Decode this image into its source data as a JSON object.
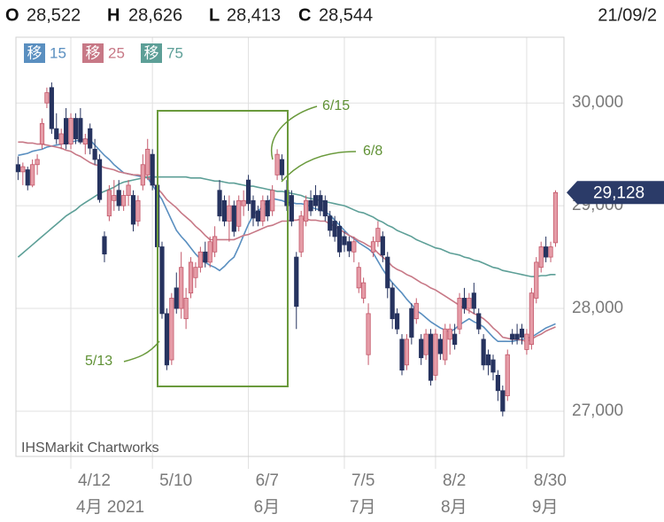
{
  "header": {
    "ohlc": [
      {
        "label": "O",
        "value": "28,522"
      },
      {
        "label": "H",
        "value": "28,626"
      },
      {
        "label": "L",
        "value": "28,413"
      },
      {
        "label": "C",
        "value": "28,544"
      }
    ],
    "date": "21/09/2"
  },
  "chart_data": {
    "type": "candlestick",
    "watermark": "IHSMarkit Chartworks",
    "categories": [
      null,
      null,
      null,
      null,
      null,
      null,
      null,
      null,
      null,
      null,
      null,
      "4/12",
      null,
      null,
      null,
      null,
      null,
      null,
      null,
      null,
      null,
      null,
      null,
      null,
      null,
      null,
      null,
      null,
      "5/10",
      null,
      null,
      null,
      null,
      null,
      null,
      null,
      null,
      null,
      null,
      null,
      null,
      null,
      null,
      null,
      null,
      null,
      null,
      null,
      "6/7",
      null,
      null,
      null,
      null,
      null,
      null,
      null,
      null,
      null,
      null,
      null,
      null,
      null,
      null,
      null,
      null,
      null,
      null,
      null,
      "7/5",
      null,
      null,
      null,
      null,
      null,
      null,
      null,
      null,
      null,
      null,
      null,
      null,
      null,
      null,
      null,
      null,
      null,
      null,
      "8/2",
      null,
      null,
      null,
      null,
      null,
      null,
      null,
      null,
      null,
      null,
      null,
      null,
      null,
      null,
      null,
      null,
      null,
      null,
      "8/30",
      null,
      null,
      null,
      null,
      null,
      null
    ],
    "month_labels": [
      null,
      null,
      null,
      null,
      null,
      null,
      null,
      null,
      null,
      null,
      null,
      "4月 2021",
      null,
      null,
      null,
      null,
      null,
      null,
      null,
      null,
      null,
      null,
      null,
      null,
      null,
      null,
      null,
      null,
      null,
      null,
      null,
      null,
      null,
      null,
      null,
      null,
      null,
      null,
      null,
      null,
      null,
      null,
      null,
      null,
      null,
      null,
      null,
      null,
      "6月",
      null,
      null,
      null,
      null,
      null,
      null,
      null,
      null,
      null,
      null,
      null,
      null,
      null,
      null,
      null,
      null,
      null,
      null,
      null,
      "7月",
      null,
      null,
      null,
      null,
      null,
      null,
      null,
      null,
      null,
      null,
      null,
      null,
      null,
      null,
      null,
      null,
      null,
      null,
      "8月",
      null,
      null,
      null,
      null,
      null,
      null,
      null,
      null,
      null,
      null,
      null,
      null,
      null,
      null,
      null,
      null,
      null,
      null,
      "9月",
      null,
      null,
      null,
      null,
      null,
      null
    ],
    "open": [
      29400,
      29330,
      29350,
      29200,
      29400,
      29600,
      30000,
      30150,
      29750,
      29600,
      29850,
      29600,
      29850,
      29850,
      29600,
      29750,
      29550,
      29450,
      28700,
      28900,
      29050,
      29150,
      29000,
      29100,
      29100,
      28850,
      29200,
      29300,
      29500,
      29200,
      28600,
      27950,
      27500,
      28200,
      28000,
      27900,
      28150,
      28300,
      28400,
      28550,
      28450,
      28550,
      29150,
      29050,
      28850,
      29000,
      28800,
      29000,
      29250,
      29050,
      28950,
      28850,
      29050,
      28950,
      29300,
      29450,
      29150,
      29100,
      28500,
      28550,
      28850,
      29050,
      29100,
      29100,
      29050,
      28900,
      28850,
      28800,
      28700,
      28650,
      28550,
      28200,
      28100,
      27550,
      28550,
      28650,
      28700,
      28500,
      28200,
      27950,
      27700,
      27450,
      28000,
      27900,
      27700,
      27550,
      27750,
      27350,
      27700,
      27500,
      27700,
      27750,
      27800,
      28100,
      28000,
      28150,
      27950,
      27700,
      27550,
      27500,
      27350,
      27200,
      27150,
      27750,
      27750,
      27800,
      27600,
      27650,
      28100,
      28400,
      28600,
      28500,
      28640
    ],
    "high": [
      29480,
      29420,
      29380,
      29450,
      29500,
      29850,
      30150,
      30200,
      29900,
      29750,
      29950,
      29900,
      29900,
      29950,
      29700,
      29800,
      29650,
      29500,
      28750,
      29200,
      29250,
      29250,
      29150,
      29250,
      29150,
      29100,
      29500,
      29650,
      29550,
      29250,
      28650,
      28000,
      28150,
      28350,
      28550,
      28200,
      28500,
      28450,
      28600,
      28650,
      28700,
      28800,
      29250,
      29100,
      29100,
      29050,
      29100,
      29150,
      29300,
      29100,
      29000,
      29100,
      29100,
      29200,
      29550,
      29500,
      29250,
      29150,
      28550,
      28950,
      29100,
      29150,
      29200,
      29150,
      29100,
      28950,
      28900,
      28850,
      28750,
      28700,
      28700,
      28450,
      28300,
      28050,
      28700,
      28850,
      28750,
      28550,
      28250,
      28000,
      27750,
      27750,
      28050,
      28100,
      27750,
      27800,
      27800,
      27800,
      27750,
      27850,
      27850,
      27850,
      28150,
      28200,
      28150,
      28250,
      28000,
      27750,
      27600,
      27550,
      27400,
      27250,
      27600,
      27800,
      27850,
      27850,
      27800,
      28200,
      28500,
      28650,
      28700,
      28650,
      29150
    ],
    "low": [
      29250,
      29200,
      29150,
      29180,
      29300,
      29550,
      29950,
      29700,
      29600,
      29550,
      29550,
      29550,
      29600,
      29600,
      29500,
      29500,
      29400,
      29030,
      28450,
      28850,
      28950,
      28950,
      28950,
      29000,
      28750,
      28800,
      29150,
      29250,
      29150,
      28500,
      27900,
      27400,
      27450,
      27950,
      27900,
      27800,
      28100,
      28200,
      28350,
      28400,
      28400,
      28500,
      28850,
      28800,
      28650,
      28700,
      28750,
      28900,
      28950,
      28800,
      28800,
      28800,
      28850,
      28900,
      29250,
      29250,
      28950,
      28800,
      27800,
      28500,
      28800,
      28900,
      28950,
      28900,
      28850,
      28700,
      28650,
      28500,
      28550,
      28500,
      28450,
      28150,
      28050,
      27450,
      28500,
      28600,
      28450,
      28100,
      27800,
      27750,
      27350,
      27400,
      27650,
      27850,
      27450,
      27500,
      27250,
      27300,
      27500,
      27450,
      27550,
      27600,
      27750,
      27950,
      27950,
      27950,
      27750,
      27400,
      27350,
      27300,
      27100,
      26950,
      27100,
      27650,
      27650,
      27650,
      27550,
      27600,
      28050,
      28350,
      28450,
      28450,
      28600
    ],
    "close": [
      29330,
      29380,
      29200,
      29400,
      29450,
      29800,
      30100,
      29750,
      29650,
      29700,
      29600,
      29850,
      29650,
      29620,
      29650,
      29560,
      29450,
      29060,
      28530,
      29150,
      29100,
      29000,
      29100,
      29200,
      28820,
      29050,
      29400,
      29550,
      29200,
      28600,
      27950,
      27450,
      28100,
      28000,
      28400,
      28100,
      28450,
      28400,
      28550,
      28450,
      28650,
      28700,
      28900,
      28850,
      29000,
      28750,
      29050,
      29050,
      29020,
      28880,
      28850,
      29050,
      28900,
      29150,
      29500,
      29300,
      29000,
      28850,
      28020,
      28900,
      29050,
      28950,
      29000,
      28950,
      28900,
      28760,
      28700,
      28550,
      28620,
      28560,
      28650,
      28400,
      28250,
      27950,
      28650,
      28780,
      28520,
      28200,
      27900,
      27800,
      27400,
      27700,
      27720,
      28050,
      27520,
      27750,
      27300,
      27750,
      27560,
      27800,
      27800,
      27650,
      28100,
      28000,
      28100,
      28000,
      27800,
      27450,
      27450,
      27380,
      27200,
      27000,
      27550,
      27700,
      27700,
      27720,
      27750,
      28150,
      28450,
      28600,
      28500,
      28600,
      29128
    ],
    "up_color": "#e59ca7",
    "up_border": "#c4586a",
    "down_color": "#26335f",
    "series": [
      {
        "badge": "移",
        "name": "15",
        "color": "#5a8fc0",
        "values": [
          29490,
          29500,
          29510,
          29530,
          29540,
          29550,
          29570,
          29580,
          29590,
          29600,
          29610,
          29620,
          29630,
          29640,
          29650,
          29640,
          29590,
          29540,
          29490,
          29450,
          29400,
          29360,
          29320,
          29310,
          29300,
          29290,
          29280,
          29270,
          29200,
          29130,
          29060,
          28960,
          28860,
          28760,
          28700,
          28650,
          28590,
          28530,
          28480,
          28450,
          28420,
          28400,
          28370,
          28410,
          28460,
          28500,
          28600,
          28710,
          28820,
          28910,
          28950,
          28990,
          29040,
          29070,
          29060,
          29050,
          29030,
          29030,
          29020,
          29020,
          29010,
          28990,
          28970,
          28960,
          28940,
          28910,
          28860,
          28810,
          28760,
          28710,
          28680,
          28640,
          28610,
          28580,
          28540,
          28460,
          28380,
          28310,
          28250,
          28200,
          28150,
          28090,
          28040,
          27980,
          27950,
          27910,
          27870,
          27840,
          27810,
          27790,
          27770,
          27800,
          27840,
          27870,
          27900,
          27870,
          27850,
          27820,
          27770,
          27720,
          27680,
          27680,
          27680,
          27680,
          27690,
          27700,
          27710,
          27720,
          27750,
          27780,
          27810,
          27830,
          27850
        ]
      },
      {
        "badge": "移",
        "name": "25",
        "color": "#c77886",
        "values": [
          29620,
          29620,
          29610,
          29610,
          29600,
          29600,
          29590,
          29580,
          29570,
          29560,
          29540,
          29530,
          29500,
          29480,
          29450,
          29420,
          29400,
          29390,
          29370,
          29360,
          29350,
          29330,
          29320,
          29310,
          29300,
          29300,
          29290,
          29280,
          29230,
          29170,
          29120,
          29060,
          29020,
          28980,
          28930,
          28890,
          28850,
          28800,
          28760,
          28710,
          28670,
          28670,
          28670,
          28670,
          28670,
          28670,
          28690,
          28710,
          28720,
          28740,
          28760,
          28780,
          28800,
          28810,
          28830,
          28850,
          28850,
          28860,
          28860,
          28870,
          28870,
          28860,
          28860,
          28850,
          28850,
          28820,
          28800,
          28770,
          28740,
          28710,
          28690,
          28660,
          28640,
          28610,
          28590,
          28540,
          28500,
          28460,
          28410,
          28380,
          28360,
          28330,
          28310,
          28280,
          28250,
          28230,
          28200,
          28180,
          28150,
          28120,
          28090,
          28060,
          28030,
          28000,
          27980,
          27950,
          27930,
          27900,
          27860,
          27810,
          27770,
          27720,
          27710,
          27700,
          27700,
          27690,
          27680,
          27700,
          27730,
          27750,
          27780,
          27800,
          27820
        ]
      },
      {
        "badge": "移",
        "name": "75",
        "color": "#5d9f97",
        "values": [
          28500,
          28540,
          28580,
          28620,
          28660,
          28700,
          28740,
          28780,
          28820,
          28860,
          28900,
          28930,
          28960,
          29000,
          29030,
          29060,
          29090,
          29120,
          29140,
          29160,
          29180,
          29210,
          29230,
          29240,
          29250,
          29260,
          29270,
          29280,
          29280,
          29280,
          29280,
          29280,
          29280,
          29280,
          29280,
          29280,
          29270,
          29270,
          29270,
          29260,
          29250,
          29240,
          29240,
          29230,
          29220,
          29220,
          29210,
          29200,
          29190,
          29190,
          29180,
          29170,
          29160,
          29150,
          29140,
          29140,
          29130,
          29120,
          29110,
          29100,
          29080,
          29070,
          29060,
          29050,
          29040,
          29030,
          29020,
          29010,
          29000,
          28980,
          28960,
          28940,
          28930,
          28910,
          28890,
          28860,
          28840,
          28810,
          28790,
          28760,
          28740,
          28720,
          28700,
          28670,
          28650,
          28630,
          28610,
          28590,
          28580,
          28560,
          28540,
          28530,
          28520,
          28500,
          28490,
          28470,
          28460,
          28440,
          28420,
          28400,
          28390,
          28370,
          28360,
          28350,
          28340,
          28330,
          28320,
          28310,
          28310,
          28320,
          28320,
          28330,
          28330
        ]
      }
    ],
    "ylim": [
      26560,
      30640
    ],
    "yticks": [
      {
        "value": 27000,
        "label": "27,000"
      },
      {
        "value": 28000,
        "label": "28,000"
      },
      {
        "value": 29000,
        "label": "29,000"
      },
      {
        "value": 30000,
        "label": "30,000"
      }
    ],
    "last_price": {
      "value": 29128,
      "label": "29,128"
    },
    "annotations": [
      {
        "text": "6/15"
      },
      {
        "text": "6/8"
      },
      {
        "text": "5/13"
      }
    ],
    "grid": true
  }
}
